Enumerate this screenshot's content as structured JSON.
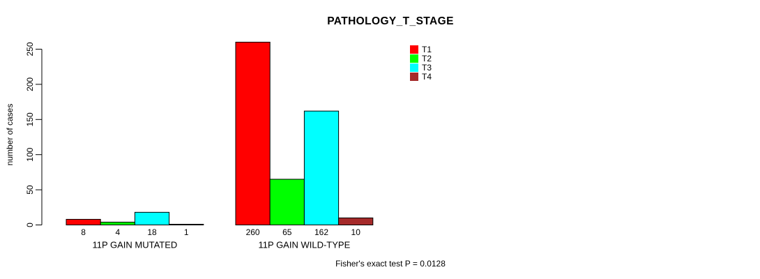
{
  "chart_data": {
    "type": "bar",
    "title": "PATHOLOGY_T_STAGE",
    "ylabel": "number of cases",
    "xlabel": "",
    "ylim": [
      0,
      250
    ],
    "yticks": [
      0,
      50,
      100,
      150,
      200,
      250
    ],
    "grid": false,
    "bar_value_labels_shown": true,
    "categories": [
      "11P GAIN MUTATED",
      "11P GAIN WILD-TYPE"
    ],
    "series": [
      {
        "name": "T1",
        "color": "#FF0000",
        "values": [
          8,
          260
        ]
      },
      {
        "name": "T2",
        "color": "#00FF00",
        "values": [
          4,
          65
        ]
      },
      {
        "name": "T3",
        "color": "#00FFFF",
        "values": [
          18,
          162
        ]
      },
      {
        "name": "T4",
        "color": "#A52A2A",
        "values": [
          1,
          10
        ]
      }
    ],
    "legend": {
      "position": "top-right",
      "entries": [
        "T1",
        "T2",
        "T3",
        "T4"
      ]
    },
    "annotation": "Fisher's exact test P = 0.0128",
    "axis_color": "#000000",
    "background_color": "#FFFFFF"
  }
}
